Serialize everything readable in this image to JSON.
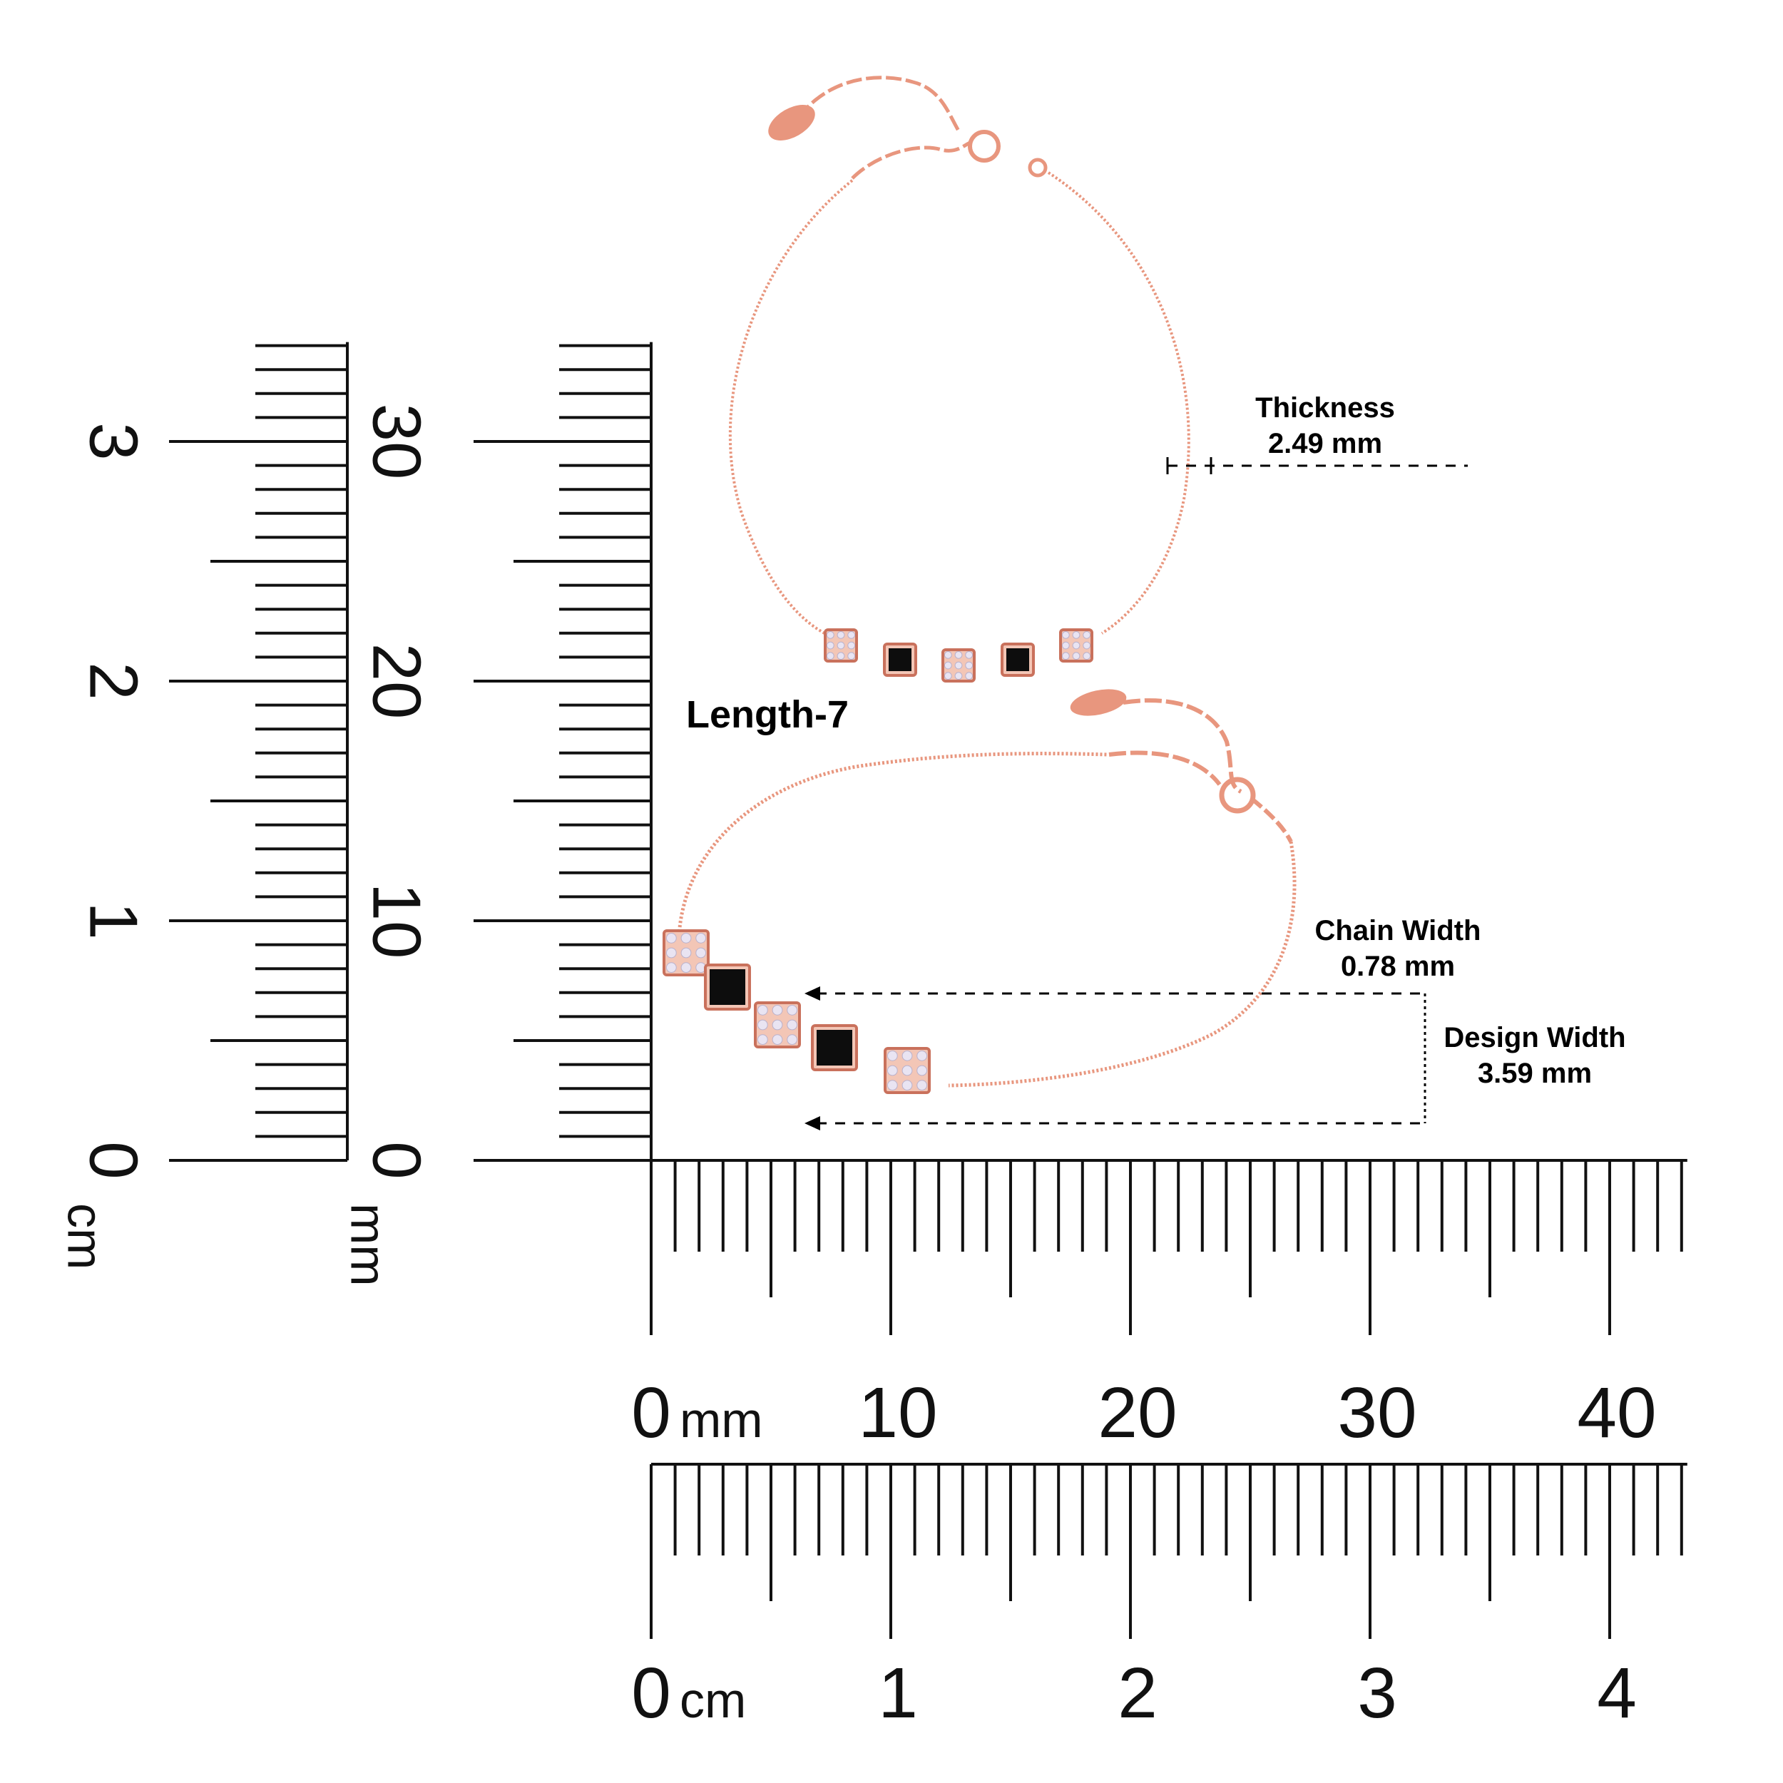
{
  "colors": {
    "chain": "#e8967e",
    "chain_dark": "#c9715c",
    "onyx": "#0d0d0d",
    "ink": "#111111"
  },
  "title": "Length-7",
  "annotations": {
    "thickness": {
      "label": "Thickness",
      "value": "2.49 mm"
    },
    "chain_width": {
      "label": "Chain Width",
      "value": "0.78 mm"
    },
    "design_width": {
      "label": "Design Width",
      "value": "3.59 mm"
    }
  },
  "rulers": {
    "vertical_cm": {
      "labels": [
        "0",
        "1",
        "2",
        "3"
      ],
      "unit": "cm"
    },
    "vertical_mm": {
      "labels": [
        "0",
        "10",
        "20",
        "30"
      ],
      "unit": "mm"
    },
    "horizontal_mm": {
      "labels": [
        "0",
        "10",
        "20",
        "30",
        "40"
      ],
      "unit": "mm"
    },
    "horizontal_cm": {
      "labels": [
        "0",
        "1",
        "2",
        "3",
        "4"
      ],
      "unit": "cm"
    }
  }
}
